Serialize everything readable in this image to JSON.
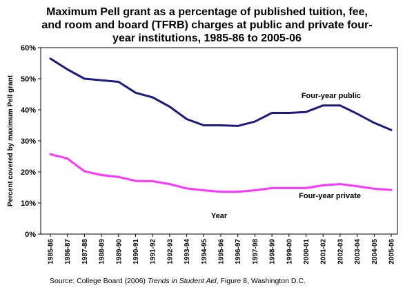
{
  "chart_data": {
    "type": "line",
    "title_lines": [
      "Maximum Pell grant as a percentage of published tuition, fee,",
      "and room and board (TFRB) charges at public and private four-",
      "year institutions, 1985-86 to 2005-06"
    ],
    "xlabel": "Year",
    "ylabel": "Percent covered by maximum Pell grant",
    "ylim": [
      0,
      60
    ],
    "yticks": [
      "0%",
      "10%",
      "20%",
      "30%",
      "40%",
      "50%",
      "60%"
    ],
    "grid": false,
    "categories": [
      "1985-86",
      "1986-87",
      "1987-88",
      "1988-89",
      "1989-90",
      "1990-91",
      "1991-92",
      "1992-93",
      "1993-94",
      "1994-95",
      "1995-96",
      "1996-97",
      "1997-98",
      "1998-99",
      "1999-00",
      "2000-01",
      "2001-02",
      "2002-03",
      "2003-04",
      "2004-05",
      "2005-06"
    ],
    "series": [
      {
        "name": "Four-year public",
        "color": "#1a1a80",
        "values": [
          56.5,
          53,
          50,
          49.5,
          49,
          45.5,
          44,
          41,
          37,
          35,
          35,
          34.8,
          36.2,
          39,
          39,
          39.3,
          41.4,
          41.4,
          38.7,
          35.8,
          33.5
        ]
      },
      {
        "name": "Four-year private",
        "color": "#ff33ff",
        "values": [
          25.7,
          24.3,
          20.2,
          19,
          18.4,
          17.1,
          17,
          16.1,
          14.7,
          14.1,
          13.6,
          13.6,
          14.1,
          14.8,
          14.8,
          14.8,
          15.7,
          16.1,
          15.4,
          14.6,
          14.2
        ]
      }
    ]
  },
  "source": {
    "prefix": "Source: College Board (2006) ",
    "italic": "Trends in Student Aid",
    "suffix": ", Figure 8, Washington D.C."
  }
}
